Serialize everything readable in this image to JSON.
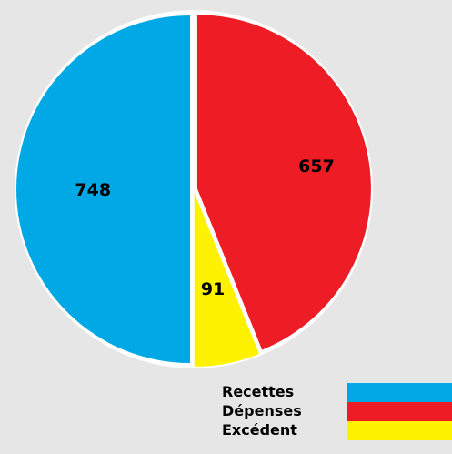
{
  "chart_data": {
    "type": "pie",
    "categories": [
      "Recettes",
      "Dépenses",
      "Excédent"
    ],
    "values": [
      748,
      657,
      91
    ],
    "colors": [
      "#00a8e6",
      "#ee1c25",
      "#fff200"
    ],
    "legend_position": "bottom-right",
    "title": "",
    "data_labels": [
      "748",
      "657",
      "91"
    ]
  }
}
